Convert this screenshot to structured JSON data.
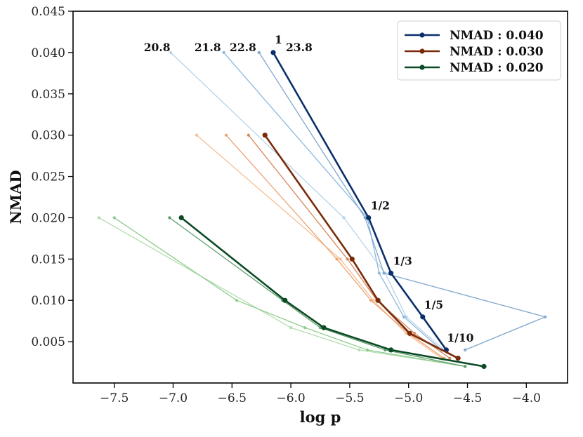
{
  "chart_data": {
    "type": "line",
    "title": "",
    "xlabel": "log p",
    "ylabel": "NMAD",
    "xlim": [
      -7.85,
      -3.65
    ],
    "ylim": [
      0.0,
      0.045
    ],
    "xticks": [
      -7.5,
      -7.0,
      -6.5,
      -6.0,
      -5.5,
      -5.0,
      -4.5,
      -4.0
    ],
    "xtick_labels": [
      "−7.5",
      "−7.0",
      "−6.5",
      "−6.0",
      "−5.5",
      "−5.0",
      "−4.5",
      "−4.0"
    ],
    "yticks": [
      0.005,
      0.01,
      0.015,
      0.02,
      0.025,
      0.03,
      0.035,
      0.04,
      0.045
    ],
    "ytick_labels": [
      "0.005",
      "0.010",
      "0.015",
      "0.020",
      "0.025",
      "0.030",
      "0.035",
      "0.040",
      "0.045"
    ],
    "grid": false,
    "legend_position": "top-right",
    "legend": [
      {
        "label": "NMAD : 0.040",
        "color": "#0b2f6b"
      },
      {
        "label": "NMAD : 0.030",
        "color": "#7a2a08"
      },
      {
        "label": "NMAD : 0.020",
        "color": "#0b4a25"
      }
    ],
    "series": [
      {
        "group": "blue",
        "color": "#b5d4ea",
        "width": 1.3,
        "points": [
          [
            -7.02,
            0.04
          ],
          [
            -5.55,
            0.02
          ],
          [
            -5.2,
            0.0133
          ],
          [
            -5.02,
            0.008
          ],
          [
            -4.7,
            0.004
          ]
        ]
      },
      {
        "group": "blue",
        "color": "#8db8dc",
        "width": 1.3,
        "points": [
          [
            -6.57,
            0.04
          ],
          [
            -5.35,
            0.02
          ],
          [
            -5.25,
            0.0133
          ],
          [
            -5.04,
            0.008
          ],
          [
            -4.72,
            0.004
          ]
        ]
      },
      {
        "group": "blue",
        "color": "#7fa7cd",
        "width": 1.3,
        "points": [
          [
            -6.27,
            0.04
          ],
          [
            -5.37,
            0.02
          ],
          [
            -5.21,
            0.0133
          ],
          [
            -3.84,
            0.008
          ],
          [
            -4.52,
            0.004
          ]
        ]
      },
      {
        "group": "blue",
        "color": "#0b2f6b",
        "width": 2.6,
        "points": [
          [
            -6.15,
            0.04
          ],
          [
            -5.34,
            0.02
          ],
          [
            -5.15,
            0.0133
          ],
          [
            -4.88,
            0.008
          ],
          [
            -4.68,
            0.004
          ]
        ]
      },
      {
        "group": "red",
        "color": "#f7bf92",
        "width": 1.3,
        "points": [
          [
            -6.8,
            0.03
          ],
          [
            -5.58,
            0.015
          ],
          [
            -5.3,
            0.01
          ],
          [
            -5.02,
            0.006
          ],
          [
            -4.72,
            0.003
          ]
        ]
      },
      {
        "group": "red",
        "color": "#eca272",
        "width": 1.3,
        "points": [
          [
            -6.55,
            0.03
          ],
          [
            -5.61,
            0.015
          ],
          [
            -5.32,
            0.01
          ],
          [
            -5.0,
            0.006
          ],
          [
            -4.7,
            0.003
          ]
        ]
      },
      {
        "group": "red",
        "color": "#d5875c",
        "width": 1.3,
        "points": [
          [
            -6.36,
            0.03
          ],
          [
            -5.52,
            0.015
          ],
          [
            -5.27,
            0.01
          ],
          [
            -4.95,
            0.006
          ],
          [
            -4.65,
            0.003
          ]
        ]
      },
      {
        "group": "red",
        "color": "#7a2a08",
        "width": 2.6,
        "points": [
          [
            -6.22,
            0.03
          ],
          [
            -5.48,
            0.015
          ],
          [
            -5.26,
            0.01
          ],
          [
            -4.99,
            0.006
          ],
          [
            -4.58,
            0.003
          ]
        ]
      },
      {
        "group": "green",
        "color": "#b3deb0",
        "width": 1.3,
        "points": [
          [
            -7.63,
            0.02
          ],
          [
            -6.0,
            0.0067
          ],
          [
            -5.42,
            0.004
          ],
          [
            -4.52,
            0.002
          ]
        ]
      },
      {
        "group": "green",
        "color": "#8fcc8e",
        "width": 1.3,
        "points": [
          [
            -7.5,
            0.02
          ],
          [
            -6.46,
            0.01
          ],
          [
            -5.88,
            0.0067
          ],
          [
            -5.35,
            0.004
          ],
          [
            -4.52,
            0.002
          ]
        ]
      },
      {
        "group": "green",
        "color": "#5c9c6a",
        "width": 1.3,
        "points": [
          [
            -7.03,
            0.02
          ],
          [
            -6.07,
            0.01
          ],
          [
            -5.75,
            0.0067
          ],
          [
            -5.2,
            0.004
          ],
          [
            -4.52,
            0.002
          ]
        ]
      },
      {
        "group": "green",
        "color": "#0b4a25",
        "width": 2.6,
        "points": [
          [
            -6.93,
            0.02
          ],
          [
            -6.05,
            0.01
          ],
          [
            -5.72,
            0.0067
          ],
          [
            -5.15,
            0.004
          ],
          [
            -4.36,
            0.002
          ]
        ]
      }
    ],
    "annotations": [
      {
        "text": "20.8",
        "x": -7.0,
        "y": 0.04,
        "anchor": "end",
        "dx": -4,
        "dy": -2
      },
      {
        "text": "21.8",
        "x": -6.57,
        "y": 0.04,
        "anchor": "end",
        "dx": -4,
        "dy": -2
      },
      {
        "text": "22.8",
        "x": -6.27,
        "y": 0.04,
        "anchor": "end",
        "dx": -4,
        "dy": -2
      },
      {
        "text": "23.8",
        "x": -6.15,
        "y": 0.04,
        "anchor": "start",
        "dx": 18,
        "dy": -2
      },
      {
        "text": "1",
        "x": -6.15,
        "y": 0.04,
        "anchor": "start",
        "dx": 2,
        "dy": -13
      },
      {
        "text": "1/2",
        "x": -5.34,
        "y": 0.02,
        "anchor": "start",
        "dx": 3,
        "dy": -12
      },
      {
        "text": "1/3",
        "x": -5.15,
        "y": 0.0133,
        "anchor": "start",
        "dx": 3,
        "dy": -12
      },
      {
        "text": "1/5",
        "x": -4.88,
        "y": 0.008,
        "anchor": "start",
        "dx": 2,
        "dy": -12
      },
      {
        "text": "1/10",
        "x": -4.68,
        "y": 0.004,
        "anchor": "start",
        "dx": 1,
        "dy": -12
      }
    ]
  }
}
